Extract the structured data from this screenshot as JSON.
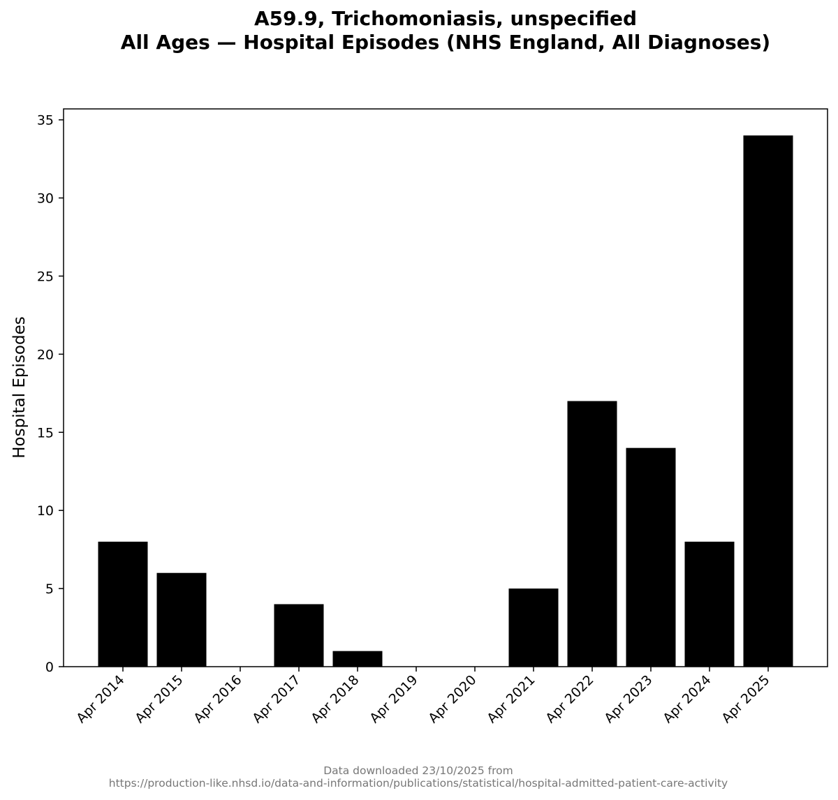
{
  "chart_data": {
    "type": "bar",
    "title": [
      "A59.9, Trichomoniasis, unspecified",
      "All Ages — Hospital Episodes (NHS England, All Diagnoses)"
    ],
    "xlabel": "",
    "ylabel": "Hospital Episodes",
    "categories": [
      "Apr 2014",
      "Apr 2015",
      "Apr 2016",
      "Apr 2017",
      "Apr 2018",
      "Apr 2019",
      "Apr 2020",
      "Apr 2021",
      "Apr 2022",
      "Apr 2023",
      "Apr 2024",
      "Apr 2025"
    ],
    "values": [
      8,
      6,
      0,
      4,
      1,
      0,
      0,
      5,
      17,
      14,
      8,
      34
    ],
    "ylim": [
      0,
      35.7
    ],
    "yticks": [
      0,
      5,
      10,
      15,
      20,
      25,
      30,
      35
    ],
    "bar_color": "#000000",
    "grid": false,
    "legend": "none"
  },
  "footer": {
    "line1": "Data downloaded 23/10/2025 from",
    "line2": "https://production-like.nhsd.io/data-and-information/publications/statistical/hospital-admitted-patient-care-activity"
  }
}
